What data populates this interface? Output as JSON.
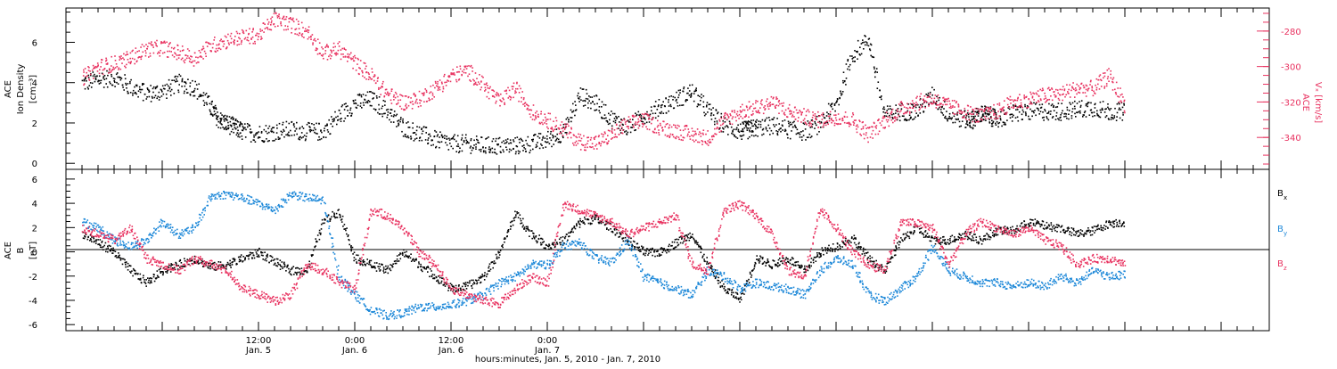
{
  "colors": {
    "black": "#000000",
    "magenta": "#e8315f",
    "blue": "#1b87d8"
  },
  "chart_data": [
    {
      "type": "scatter",
      "panel": "top",
      "ylabel_lines": [
        "ACE",
        "Ion Density",
        "[cm⁻³]"
      ],
      "ylim": [
        -0.3,
        7.7
      ],
      "y_ticks": [
        0,
        2,
        4,
        6
      ],
      "y2label_lines": [
        "ACE",
        "Vₓ [km/s]"
      ],
      "y2lim": [
        -358,
        -267
      ],
      "y2_ticks": [
        -280,
        -300,
        -320,
        -340
      ],
      "series": [
        {
          "color": "black",
          "axis": "left",
          "x": [
            -10,
            -8,
            -6,
            -4,
            -2,
            0,
            2,
            4,
            6,
            7,
            8,
            9,
            10,
            12,
            14,
            16,
            18,
            20,
            22,
            24,
            26,
            28,
            30,
            32,
            34,
            36,
            38,
            40,
            42,
            44,
            46,
            48,
            50,
            52,
            54,
            56,
            58,
            60,
            62,
            64,
            66,
            68,
            70,
            72,
            73,
            74,
            76,
            78,
            80,
            82,
            84,
            86,
            88,
            90,
            92,
            94,
            96,
            98,
            100,
            101,
            102,
            103,
            104,
            106,
            108,
            110,
            112,
            114,
            116,
            118,
            120
          ],
          "y": [
            4.0,
            4.2,
            4.3,
            3.8,
            3.5,
            3.6,
            4.0,
            3.8,
            2.8,
            2.2,
            2.0,
            1.8,
            1.6,
            1.5,
            1.6,
            1.7,
            1.6,
            1.6,
            2.4,
            3.0,
            3.2,
            2.6,
            1.8,
            1.5,
            1.2,
            1.0,
            1.0,
            0.9,
            0.9,
            0.9,
            1.0,
            1.2,
            1.6,
            3.4,
            3.0,
            2.2,
            1.8,
            2.4,
            2.8,
            3.2,
            3.6,
            2.6,
            1.9,
            1.6,
            1.7,
            1.8,
            1.9,
            1.7,
            1.6,
            2.0,
            3.0,
            5.4,
            6.2,
            2.4,
            2.6,
            2.6,
            3.4,
            2.4,
            2.2,
            2.2,
            2.5,
            2.4,
            2.2,
            2.5,
            2.6,
            2.6,
            2.6,
            2.7,
            2.8,
            2.6,
            2.6
          ]
        },
        {
          "color": "magenta",
          "axis": "right",
          "x": [
            -10,
            -8,
            -6,
            -4,
            -2,
            0,
            2,
            4,
            6,
            8,
            10,
            12,
            14,
            16,
            18,
            20,
            22,
            24,
            26,
            28,
            30,
            32,
            34,
            36,
            38,
            40,
            42,
            44,
            46,
            48,
            50,
            52,
            54,
            56,
            58,
            60,
            62,
            64,
            66,
            68,
            70,
            72,
            74,
            76,
            78,
            80,
            82,
            84,
            86,
            88,
            90,
            92,
            94,
            96,
            98,
            100,
            102,
            104,
            106,
            108,
            110,
            112,
            114,
            116,
            118,
            120
          ],
          "y": [
            -306,
            -300,
            -298,
            -295,
            -290,
            -289,
            -292,
            -295,
            -288,
            -285,
            -283,
            -282,
            -273,
            -276,
            -280,
            -292,
            -290,
            -298,
            -305,
            -315,
            -320,
            -318,
            -312,
            -305,
            -302,
            -310,
            -320,
            -312,
            -325,
            -330,
            -335,
            -342,
            -343,
            -338,
            -332,
            -330,
            -334,
            -336,
            -338,
            -340,
            -330,
            -325,
            -323,
            -320,
            -325,
            -328,
            -330,
            -328,
            -330,
            -338,
            -330,
            -324,
            -320,
            -318,
            -322,
            -325,
            -328,
            -325,
            -320,
            -318,
            -316,
            -315,
            -312,
            -312,
            -305,
            -322
          ]
        }
      ]
    },
    {
      "type": "scatter",
      "panel": "bottom",
      "ylabel_lines": [
        "ACE",
        "B",
        "[nT]"
      ],
      "ylim": [
        -6.5,
        6.8
      ],
      "y_ticks": [
        -6,
        -4,
        -2,
        0,
        2,
        4,
        6
      ],
      "xlim": [
        -12,
        138
      ],
      "x_ticks": [
        12,
        24,
        36,
        48,
        60
      ],
      "x_tick_labels": [
        [
          "12:00",
          "Jan. 5"
        ],
        [
          "0:00",
          "Jan. 6"
        ],
        [
          "12:00",
          "Jan. 6"
        ],
        [
          "0:00",
          "Jan. 7"
        ]
      ],
      "x_tick_label_positions": [
        12,
        24,
        36,
        48
      ],
      "xlabel": "hours:minutes, Jan. 5, 2010 - Jan. 7, 2010",
      "legend": [
        {
          "label": "B",
          "sub": "x",
          "color": "black"
        },
        {
          "label": "B",
          "sub": "y",
          "color": "blue"
        },
        {
          "label": "B",
          "sub": "z",
          "color": "magenta"
        }
      ],
      "series": [
        {
          "name": "Bx",
          "color": "black",
          "x": [
            -10,
            -8,
            -6,
            -4,
            -2,
            0,
            2,
            4,
            6,
            8,
            10,
            12,
            14,
            16,
            18,
            20,
            22,
            24,
            26,
            28,
            30,
            32,
            34,
            36,
            38,
            40,
            42,
            44,
            46,
            48,
            50,
            52,
            54,
            56,
            58,
            60,
            62,
            64,
            66,
            68,
            70,
            72,
            74,
            76,
            78,
            80,
            82,
            84,
            86,
            88,
            90,
            92,
            94,
            96,
            98,
            100,
            102,
            104,
            106,
            108,
            110,
            112,
            114,
            116,
            118,
            120
          ],
          "y": [
            1.5,
            0.8,
            0.0,
            -1.5,
            -2.5,
            -1.5,
            -1.0,
            -0.5,
            -1.2,
            -1.0,
            -0.5,
            0.0,
            -0.8,
            -1.5,
            -1.5,
            2.5,
            3.4,
            -0.5,
            -1.0,
            -1.5,
            0.0,
            -1.0,
            -2.0,
            -3.0,
            -2.8,
            -2.0,
            0.0,
            3.2,
            1.5,
            0.5,
            1.0,
            2.5,
            2.8,
            2.0,
            1.0,
            0.0,
            0.0,
            0.8,
            1.5,
            -1.0,
            -3.0,
            -3.8,
            -0.5,
            -1.0,
            -0.5,
            -1.5,
            0.0,
            0.5,
            1.2,
            -0.5,
            -1.5,
            1.0,
            2.0,
            1.0,
            1.0,
            1.5,
            1.0,
            1.8,
            1.8,
            2.5,
            2.2,
            2.0,
            1.5,
            1.8,
            2.4,
            2.5
          ]
        },
        {
          "name": "By",
          "color": "blue",
          "x": [
            -10,
            -8,
            -6,
            -4,
            -2,
            0,
            2,
            4,
            6,
            8,
            10,
            12,
            14,
            16,
            18,
            20,
            22,
            24,
            26,
            28,
            30,
            32,
            34,
            36,
            38,
            40,
            42,
            44,
            46,
            48,
            50,
            52,
            54,
            56,
            58,
            60,
            62,
            64,
            66,
            68,
            70,
            72,
            74,
            76,
            78,
            80,
            82,
            84,
            86,
            88,
            90,
            92,
            94,
            96,
            98,
            100,
            102,
            104,
            106,
            108,
            110,
            112,
            114,
            116,
            118,
            120
          ],
          "y": [
            2.5,
            2.0,
            1.0,
            0.5,
            1.0,
            2.5,
            1.5,
            2.0,
            4.6,
            4.8,
            4.5,
            4.0,
            3.5,
            4.8,
            4.5,
            4.3,
            -2.0,
            -3.5,
            -4.8,
            -5.2,
            -5.0,
            -4.5,
            -4.5,
            -4.3,
            -4.0,
            -3.5,
            -2.5,
            -2.0,
            -1.0,
            -1.0,
            0.5,
            0.8,
            -0.5,
            -0.8,
            1.0,
            -2.0,
            -2.5,
            -3.0,
            -3.5,
            -1.5,
            -2.0,
            -3.0,
            -2.5,
            -2.8,
            -3.0,
            -3.5,
            -1.5,
            -0.5,
            -1.0,
            -3.5,
            -4.0,
            -3.0,
            -2.0,
            0.5,
            -1.5,
            -2.0,
            -2.5,
            -2.5,
            -2.8,
            -2.5,
            -2.8,
            -2.0,
            -2.5,
            -1.5,
            -2.0,
            -1.8
          ]
        },
        {
          "name": "Bz",
          "color": "magenta",
          "x": [
            -10,
            -8,
            -6,
            -4,
            -2,
            0,
            2,
            4,
            6,
            8,
            10,
            12,
            14,
            16,
            18,
            20,
            22,
            24,
            26,
            28,
            30,
            32,
            34,
            36,
            38,
            40,
            42,
            44,
            46,
            48,
            50,
            52,
            54,
            56,
            58,
            60,
            62,
            64,
            66,
            68,
            70,
            72,
            74,
            76,
            78,
            80,
            82,
            84,
            86,
            88,
            90,
            92,
            94,
            96,
            98,
            100,
            102,
            104,
            106,
            108,
            110,
            112,
            114,
            116,
            118,
            120
          ],
          "y": [
            2.0,
            1.5,
            1.0,
            2.0,
            -0.5,
            -1.0,
            -1.5,
            -0.5,
            -1.0,
            -1.5,
            -3.0,
            -3.5,
            -4.0,
            -3.5,
            -1.0,
            -1.5,
            -2.5,
            -3.0,
            3.5,
            3.0,
            2.0,
            0.0,
            -1.0,
            -3.0,
            -3.5,
            -4.0,
            -4.2,
            -3.0,
            -2.0,
            -2.5,
            4.0,
            3.5,
            3.0,
            2.5,
            1.5,
            2.0,
            2.5,
            3.0,
            -1.0,
            -1.5,
            3.5,
            4.0,
            3.0,
            1.5,
            -1.5,
            -2.0,
            3.5,
            2.0,
            0.0,
            -1.0,
            -1.5,
            2.5,
            2.4,
            2.0,
            -1.0,
            1.5,
            2.5,
            2.0,
            1.5,
            2.0,
            1.0,
            0.5,
            -1.0,
            -0.5,
            -0.5,
            -1.0
          ]
        }
      ]
    }
  ]
}
